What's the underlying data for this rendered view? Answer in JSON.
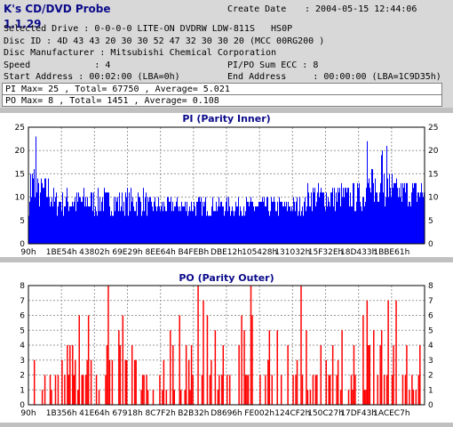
{
  "header": {
    "app_title": "K's CD/DVD Probe 1.1.29",
    "create_date_label": "Create Date",
    "create_date_value": ": 2004-05-15 12:44:06",
    "selected_drive": "Selected Drive : 0-0-0-0 LITE-ON DVDRW LDW-811S   HS0P",
    "disc_id": "Disc ID : 4D 43 43 20 30 30 52 47 32 30 30 20 (MCC 00RG200 )",
    "disc_manufacturer": "Disc Manufacturer : Mitsubishi Chemical Corporation",
    "speed": "Speed            : 4",
    "pipo_sum_ecc": "PI/PO Sum ECC : 8",
    "start_address": "Start Address : 00:02:00 (LBA=0h)",
    "end_address": "End Address     : 00:00:00 (LBA=1C9D35h)",
    "pi_stats": "PI Max= 25 , Total= 67750 , Average= 5.021",
    "po_stats": "PO Max= 8 , Total= 1451 , Average= 0.108"
  },
  "colors": {
    "background": "#d8d8d8",
    "title_blue": "#0b0b8a",
    "pi_fill": "#0000ff",
    "po_fill": "#ff0000"
  },
  "chart_data": [
    {
      "type": "bar",
      "title": "PI (Parity Inner)",
      "xlabel": "",
      "ylabel": "",
      "ylim": [
        0,
        25
      ],
      "yticks": [
        0,
        5,
        10,
        15,
        20,
        25
      ],
      "x_ticks": [
        "90h",
        "1BE54h",
        "43802h",
        "69E29h",
        "8EE64h",
        "B4FEBh",
        "DBE12h",
        "105428h",
        "131032h",
        "15F32Eh",
        "18D433h",
        "1BBE61h"
      ],
      "grid": "dashed",
      "profile": [
        {
          "from": 0.0,
          "to": 0.02,
          "base": 12,
          "spread": 6,
          "peak": 25
        },
        {
          "from": 0.02,
          "to": 0.06,
          "base": 11,
          "spread": 4
        },
        {
          "from": 0.06,
          "to": 0.3,
          "base": 9,
          "spread": 3
        },
        {
          "from": 0.3,
          "to": 0.7,
          "base": 8,
          "spread": 2
        },
        {
          "from": 0.7,
          "to": 0.85,
          "base": 10,
          "spread": 3
        },
        {
          "from": 0.85,
          "to": 0.92,
          "base": 12,
          "spread": 4,
          "peak": 22
        },
        {
          "from": 0.92,
          "to": 1.0,
          "base": 11,
          "spread": 3
        }
      ],
      "series": [
        {
          "name": "PI",
          "max": 25,
          "average": 5.021
        }
      ]
    },
    {
      "type": "bar",
      "title": "PO (Parity Outer)",
      "xlabel": "",
      "ylabel": "",
      "ylim": [
        0,
        8
      ],
      "yticks": [
        0,
        1,
        2,
        3,
        4,
        5,
        6,
        7,
        8
      ],
      "x_ticks": [
        "90h",
        "1B356h",
        "41E64h",
        "67918h",
        "8C7F2h",
        "B2B32h",
        "D8696h",
        "FE002h",
        "124CF2h",
        "150C27h",
        "17DF43h",
        "1ACEC7h"
      ],
      "grid": "dashed",
      "series": [
        {
          "name": "PO",
          "max": 8,
          "average": 0.108
        }
      ]
    }
  ]
}
